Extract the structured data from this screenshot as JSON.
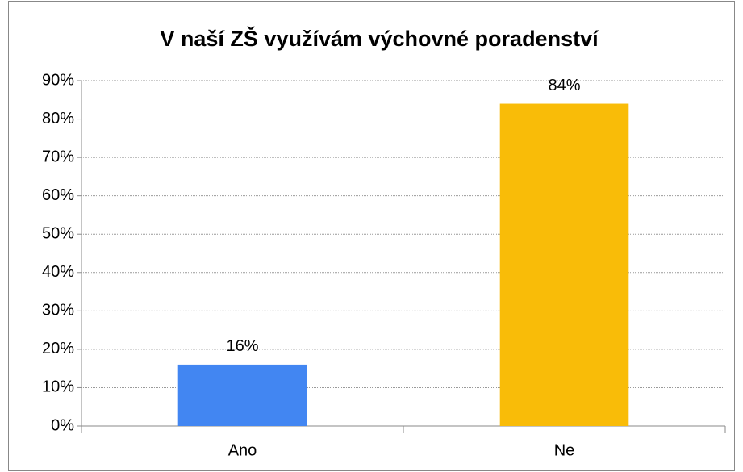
{
  "chart_data": {
    "type": "bar",
    "title": "V naší ZŠ využívám výchovné poradenství",
    "categories": [
      "Ano",
      "Ne"
    ],
    "values": [
      16,
      84
    ],
    "value_labels": [
      "16%",
      "84%"
    ],
    "colors": [
      "#4286f2",
      "#f9bc08"
    ],
    "ylim": [
      0,
      90
    ],
    "yticks": [
      {
        "value": 0,
        "label": "0%"
      },
      {
        "value": 10,
        "label": "10%"
      },
      {
        "value": 20,
        "label": "20%"
      },
      {
        "value": 30,
        "label": "30%"
      },
      {
        "value": 40,
        "label": "40%"
      },
      {
        "value": 50,
        "label": "50%"
      },
      {
        "value": 60,
        "label": "60%"
      },
      {
        "value": 70,
        "label": "70%"
      },
      {
        "value": 80,
        "label": "80%"
      },
      {
        "value": 90,
        "label": "90%"
      }
    ],
    "grid": true
  }
}
